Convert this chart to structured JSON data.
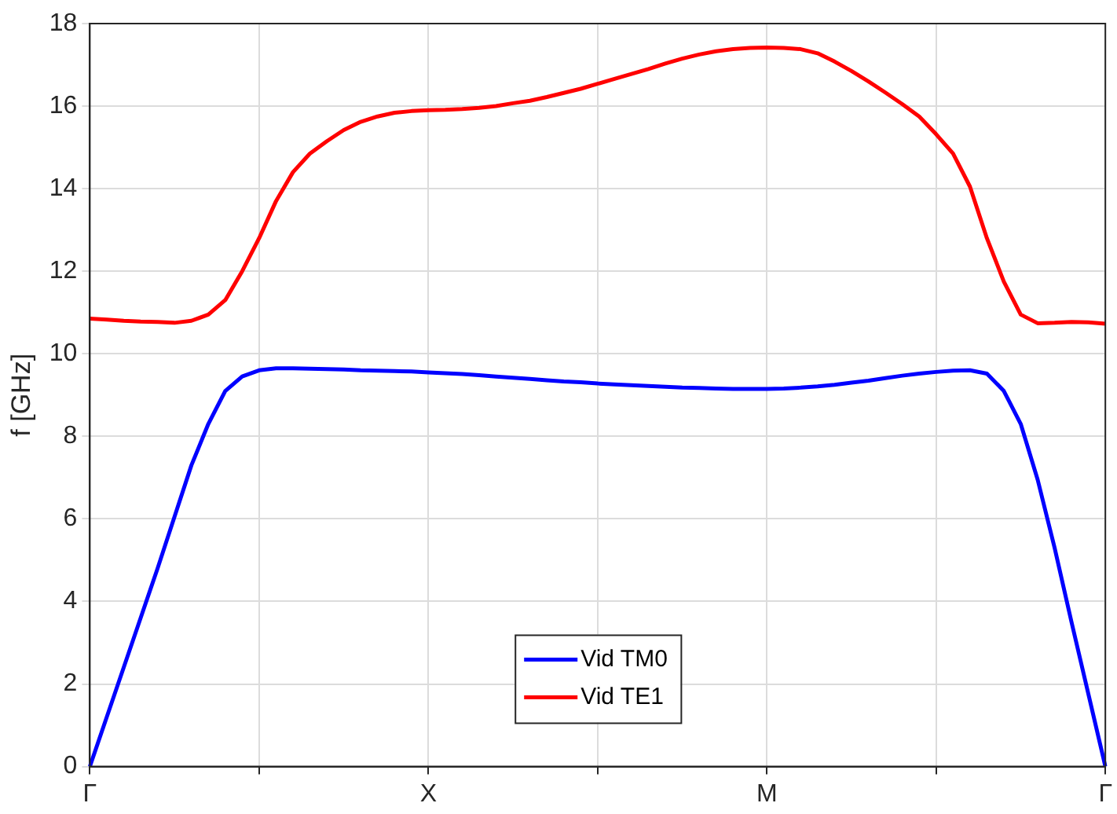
{
  "chart_data": {
    "type": "line",
    "ylabel": "f [GHz]",
    "categories": [
      "Γ",
      null,
      null,
      null,
      null,
      null,
      null,
      null,
      null,
      null,
      null,
      null,
      null,
      null,
      null,
      null,
      null,
      null,
      null,
      null,
      "X",
      null,
      null,
      null,
      null,
      null,
      null,
      null,
      null,
      null,
      null,
      null,
      null,
      null,
      null,
      null,
      null,
      null,
      null,
      null,
      "M",
      null,
      null,
      null,
      null,
      null,
      null,
      null,
      null,
      null,
      null,
      null,
      null,
      null,
      null,
      null,
      null,
      null,
      null,
      null,
      "Γ"
    ],
    "ylim": [
      0,
      18
    ],
    "yticks": [
      0,
      2,
      4,
      6,
      8,
      10,
      12,
      14,
      16,
      18
    ],
    "grid": true,
    "legend": "bottom",
    "marker": "none",
    "line_style": "solid",
    "series": [
      {
        "name": "Vid TM0",
        "color": "#0000ff",
        "values": [
          0,
          1.2,
          2.4,
          3.6,
          4.8,
          6.05,
          7.3,
          8.3,
          9.1,
          9.45,
          9.6,
          9.65,
          9.65,
          9.64,
          9.63,
          9.62,
          9.6,
          9.59,
          9.58,
          9.57,
          9.55,
          9.53,
          9.51,
          9.48,
          9.45,
          9.42,
          9.39,
          9.36,
          9.33,
          9.31,
          9.28,
          9.26,
          9.24,
          9.22,
          9.2,
          9.18,
          9.17,
          9.16,
          9.15,
          9.15,
          9.15,
          9.16,
          9.18,
          9.21,
          9.25,
          9.3,
          9.35,
          9.41,
          9.47,
          9.52,
          9.56,
          9.59,
          9.6,
          9.52,
          9.1,
          8.3,
          6.95,
          5.3,
          3.5,
          1.75,
          0
        ]
      },
      {
        "name": "Vid TE1",
        "color": "#ff0000",
        "values": [
          10.85,
          10.83,
          10.8,
          10.78,
          10.77,
          10.75,
          10.8,
          10.95,
          11.3,
          12.0,
          12.8,
          13.7,
          14.4,
          14.85,
          15.15,
          15.42,
          15.62,
          15.75,
          15.84,
          15.88,
          15.9,
          15.91,
          15.93,
          15.96,
          16.0,
          16.07,
          16.13,
          16.22,
          16.32,
          16.42,
          16.54,
          16.66,
          16.78,
          16.9,
          17.03,
          17.15,
          17.25,
          17.33,
          17.38,
          17.41,
          17.42,
          17.41,
          17.38,
          17.28,
          17.08,
          16.85,
          16.6,
          16.33,
          16.05,
          15.75,
          15.32,
          14.85,
          14.05,
          12.8,
          11.75,
          10.95,
          10.74,
          10.75,
          10.77,
          10.76,
          10.73
        ]
      }
    ]
  }
}
